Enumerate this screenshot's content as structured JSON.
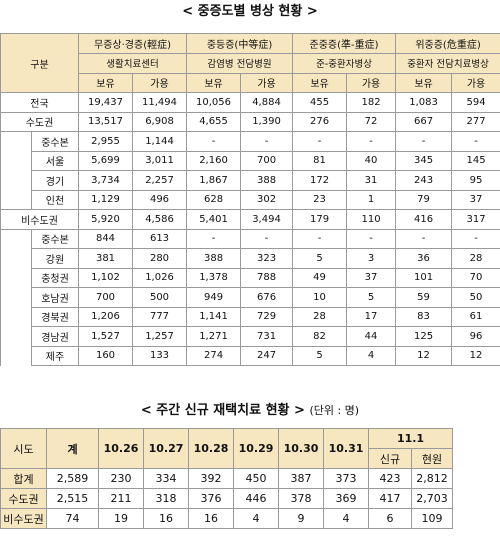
{
  "table1": {
    "title": "< 중증도별 병상 현황 >",
    "header": {
      "gubun": "구분",
      "groups": [
        {
          "name": "무증상·경증(輕症)",
          "sub": "생활치료센터"
        },
        {
          "name": "중등증(中等症)",
          "sub": "감염병 전담병원"
        },
        {
          "name": "준중증(準-重症)",
          "sub": "준-중환자병상"
        },
        {
          "name": "위중증(危重症)",
          "sub": "중환자 전담치료병상"
        }
      ],
      "col_labels": [
        "보유",
        "가용"
      ]
    },
    "rows": [
      {
        "label": "전국",
        "values": [
          "19,437",
          "11,494",
          "10,056",
          "4,884",
          "455",
          "182",
          "1,083",
          "594"
        ]
      },
      {
        "label": "수도권",
        "values": [
          "13,517",
          "6,908",
          "4,655",
          "1,390",
          "276",
          "72",
          "667",
          "277"
        ]
      },
      {
        "label": "중수본",
        "values": [
          "2,955",
          "1,144",
          "-",
          "-",
          "-",
          "-",
          "-",
          "-"
        ]
      },
      {
        "label": "서울",
        "values": [
          "5,699",
          "3,011",
          "2,160",
          "700",
          "81",
          "40",
          "345",
          "145"
        ]
      },
      {
        "label": "경기",
        "values": [
          "3,734",
          "2,257",
          "1,867",
          "388",
          "172",
          "31",
          "243",
          "95"
        ]
      },
      {
        "label": "인천",
        "values": [
          "1,129",
          "496",
          "628",
          "302",
          "23",
          "1",
          "79",
          "37"
        ]
      },
      {
        "label": "비수도권",
        "values": [
          "5,920",
          "4,586",
          "5,401",
          "3,494",
          "179",
          "110",
          "416",
          "317"
        ]
      },
      {
        "label": "중수본",
        "values": [
          "844",
          "613",
          "-",
          "-",
          "-",
          "-",
          "-",
          "-"
        ]
      },
      {
        "label": "강원",
        "values": [
          "381",
          "280",
          "388",
          "323",
          "5",
          "3",
          "36",
          "28"
        ]
      },
      {
        "label": "충청권",
        "values": [
          "1,102",
          "1,026",
          "1,378",
          "788",
          "49",
          "37",
          "101",
          "70"
        ]
      },
      {
        "label": "호남권",
        "values": [
          "700",
          "500",
          "949",
          "676",
          "10",
          "5",
          "59",
          "50"
        ]
      },
      {
        "label": "경북권",
        "values": [
          "1,206",
          "777",
          "1,141",
          "729",
          "28",
          "17",
          "83",
          "61"
        ]
      },
      {
        "label": "경남권",
        "values": [
          "1,527",
          "1,257",
          "1,271",
          "731",
          "82",
          "44",
          "125",
          "96"
        ]
      },
      {
        "label": "제주",
        "values": [
          "160",
          "133",
          "274",
          "247",
          "5",
          "4",
          "12",
          "12"
        ]
      }
    ]
  },
  "table2": {
    "title": "< 주간 신규 재택치료 현황 >",
    "unit": "(단위 : 명)",
    "header": {
      "sido": "시도",
      "total": "계",
      "dates": [
        "10.26",
        "10.27",
        "10.28",
        "10.29",
        "10.30",
        "10.31"
      ],
      "last_date": "11.1",
      "last_sub": [
        "신규",
        "현원"
      ]
    },
    "rows": [
      {
        "label": "합계",
        "values": [
          "2,589",
          "230",
          "334",
          "392",
          "450",
          "387",
          "373",
          "423",
          "2,812"
        ]
      },
      {
        "label": "수도권",
        "values": [
          "2,515",
          "211",
          "318",
          "376",
          "446",
          "378",
          "369",
          "417",
          "2,703"
        ]
      },
      {
        "label": "비수도권",
        "values": [
          "74",
          "19",
          "16",
          "16",
          "4",
          "9",
          "4",
          "6",
          "109"
        ]
      }
    ]
  }
}
